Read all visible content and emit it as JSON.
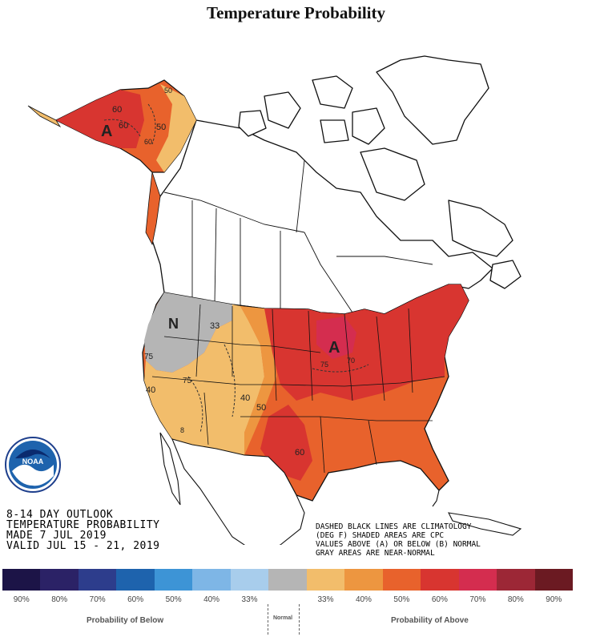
{
  "title": "Temperature Probability",
  "outlook": {
    "line1": "8-14 DAY OUTLOOK",
    "line2": "TEMPERATURE PROBABILITY",
    "line3": "MADE  7 JUL 2019",
    "line4": "VALID  JUL 15 - 21, 2019"
  },
  "notes": {
    "line1": "DASHED BLACK LINES ARE CLIMATOLOGY",
    "line2": "(DEG F) SHADED AREAS ARE CPC",
    "line3": "VALUES ABOVE (A) OR BELOW (B) NORMAL",
    "line4": "GRAY AREAS ARE NEAR-NORMAL"
  },
  "logo": {
    "text": "NOAA",
    "icon": "noaa-logo-icon"
  },
  "legend": {
    "colors": [
      "#1c1447",
      "#2b2266",
      "#2d3d8c",
      "#1e63ad",
      "#3d94d6",
      "#7eb6e6",
      "#a8cdec",
      "#b5b5b5",
      "#f2bd6b",
      "#ed9640",
      "#e8622c",
      "#d83530",
      "#d42d4f",
      "#9c2736",
      "#6b1a22"
    ],
    "labels": [
      "90%",
      "80%",
      "70%",
      "60%",
      "50%",
      "40%",
      "33%",
      "",
      "33%",
      "40%",
      "50%",
      "60%",
      "70%",
      "80%",
      "90%"
    ],
    "below_caption": "Probability of Below",
    "normal_caption": "Normal",
    "above_caption": "Probability of Above"
  },
  "map_labels": {
    "alaska_a": "A",
    "alaska_60": "60",
    "alaska_60b": "60",
    "alaska_50": "50",
    "alaska_50b": "50",
    "alaska_60c": "60",
    "northwest_n": "N",
    "northwest_33": "33",
    "northwest_75": "75",
    "west_40": "40",
    "west_75": "75",
    "west_40b": "40",
    "west_50": "50",
    "west_8": "8",
    "midwest_a": "A",
    "midwest_75": "75",
    "midwest_70": "70",
    "south_60": "60"
  }
}
